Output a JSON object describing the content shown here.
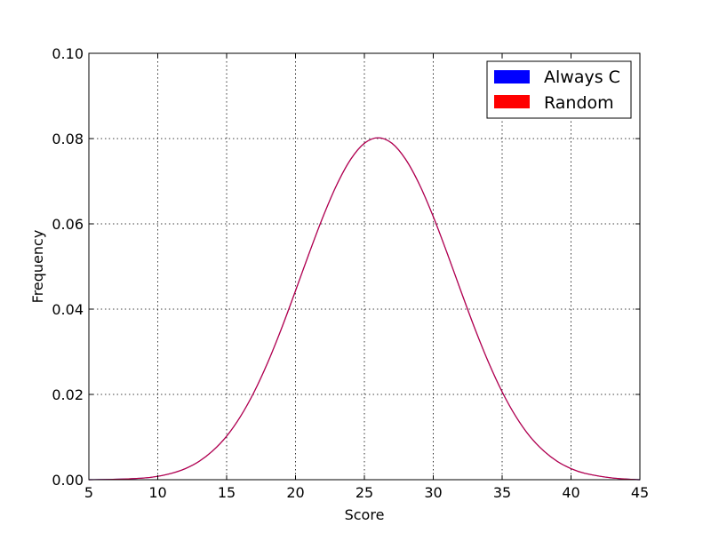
{
  "chart_data": {
    "type": "line",
    "title": "",
    "xlabel": "Score",
    "ylabel": "Frequency",
    "xlim": [
      5,
      45
    ],
    "ylim": [
      0.0,
      0.1
    ],
    "xticks": [
      "5",
      "10",
      "15",
      "20",
      "25",
      "30",
      "35",
      "40",
      "45"
    ],
    "yticks": [
      "0.00",
      "0.02",
      "0.04",
      "0.06",
      "0.08",
      "0.10"
    ],
    "grid": true,
    "legend_position": "upper-right",
    "series": [
      {
        "name": "Always C",
        "color": "#0000ff",
        "x": [
          5,
          7,
          9,
          10,
          11,
          12,
          13,
          14,
          15,
          16,
          17,
          18,
          19,
          20,
          21,
          22,
          23,
          24,
          25,
          26,
          27,
          28,
          29,
          30,
          31,
          32,
          33,
          34,
          35,
          36,
          37,
          38,
          39,
          40,
          41,
          43,
          45
        ],
        "y": [
          0.0,
          0.0001,
          0.0004,
          0.0008,
          0.0015,
          0.0026,
          0.0043,
          0.0068,
          0.0102,
          0.0148,
          0.0206,
          0.0276,
          0.0356,
          0.0443,
          0.0532,
          0.0617,
          0.0692,
          0.0751,
          0.0789,
          0.0802,
          0.0789,
          0.0751,
          0.0692,
          0.0617,
          0.0532,
          0.0443,
          0.0356,
          0.0276,
          0.0206,
          0.0148,
          0.0102,
          0.0068,
          0.0043,
          0.0026,
          0.0015,
          0.0004,
          0.0
        ]
      },
      {
        "name": "Random",
        "color": "#ff0000",
        "x": [
          5,
          7,
          9,
          10,
          11,
          12,
          13,
          14,
          15,
          16,
          17,
          18,
          19,
          20,
          21,
          22,
          23,
          24,
          25,
          26,
          27,
          28,
          29,
          30,
          31,
          32,
          33,
          34,
          35,
          36,
          37,
          38,
          39,
          40,
          41,
          43,
          45
        ],
        "y": [
          0.0,
          0.0001,
          0.0004,
          0.0008,
          0.0015,
          0.0026,
          0.0043,
          0.0068,
          0.0102,
          0.0148,
          0.0206,
          0.0276,
          0.0356,
          0.0443,
          0.0532,
          0.0617,
          0.0692,
          0.0751,
          0.0789,
          0.0802,
          0.0789,
          0.0751,
          0.0692,
          0.0617,
          0.0532,
          0.0443,
          0.0356,
          0.0276,
          0.0206,
          0.0148,
          0.0102,
          0.0068,
          0.0043,
          0.0026,
          0.0015,
          0.0004,
          0.0
        ]
      }
    ]
  }
}
